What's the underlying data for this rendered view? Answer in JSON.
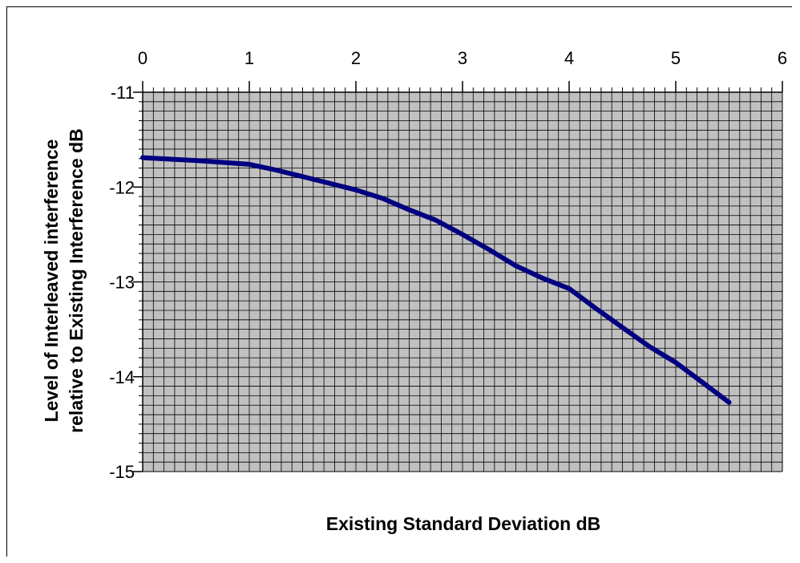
{
  "chart_data": {
    "type": "line",
    "xlabel": "Existing Standard Deviation dB",
    "ylabel": [
      "Level of Interleaved interference",
      "relative to Existing Interference dB"
    ],
    "xlim": [
      0,
      6
    ],
    "ylim": [
      -15,
      -11
    ],
    "x_ticks": [
      0,
      1,
      2,
      3,
      4,
      5,
      6
    ],
    "y_ticks": [
      -11,
      -12,
      -13,
      -14,
      -15
    ],
    "x_minor_step": 0.1,
    "y_minor_step": 0.1,
    "x_axis_position": "top",
    "grid": true,
    "plot_background": "#c0c0c0",
    "grid_color": "#000000",
    "series": [
      {
        "color": "#000080",
        "x": [
          0,
          0.5,
          1,
          1.25,
          1.5,
          1.75,
          2,
          2.25,
          2.5,
          2.75,
          3,
          3.25,
          3.5,
          3.75,
          4,
          4.25,
          4.5,
          4.75,
          5,
          5.25,
          5.5
        ],
        "y": [
          -11.69,
          -11.72,
          -11.76,
          -11.82,
          -11.89,
          -11.96,
          -12.03,
          -12.12,
          -12.24,
          -12.35,
          -12.5,
          -12.66,
          -12.83,
          -12.96,
          -13.07,
          -13.28,
          -13.48,
          -13.68,
          -13.85,
          -14.06,
          -14.27
        ]
      }
    ]
  }
}
